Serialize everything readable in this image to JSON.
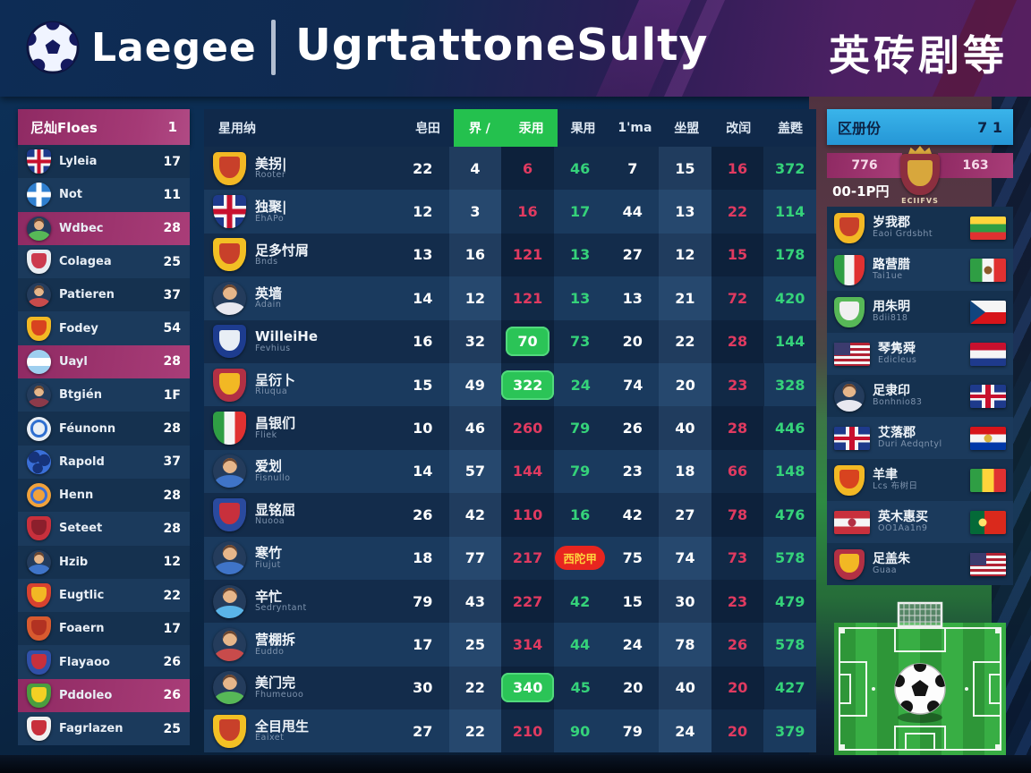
{
  "header": {
    "brand": "Laegee",
    "title": "UgrtattoneSulty",
    "right_title": "英砖剧等"
  },
  "left_sidebar": {
    "header": {
      "label": "尼灿Floes",
      "value": "1"
    },
    "rows": [
      {
        "icon": "uk-shield-icon",
        "name": "Lyleia",
        "value": "17",
        "highlight": false
      },
      {
        "icon": "cross-circle-icon",
        "name": "Not",
        "value": "11",
        "highlight": false
      },
      {
        "icon": "avatar-green-icon",
        "name": "Wdbec",
        "value": "28",
        "highlight": true
      },
      {
        "icon": "white-red-shield-icon",
        "name": "Colagea",
        "value": "25",
        "highlight": false
      },
      {
        "icon": "avatar-red-icon",
        "name": "Patieren",
        "value": "37",
        "highlight": false
      },
      {
        "icon": "gold-crest-icon",
        "name": "Fodey",
        "value": "54",
        "highlight": false
      },
      {
        "icon": "argentina-circle-icon",
        "name": "Uayl",
        "value": "28",
        "highlight": true
      },
      {
        "icon": "avatar-maroon-icon",
        "name": "Btgién",
        "value": "1F",
        "highlight": false
      },
      {
        "icon": "ring-circle-icon",
        "name": "Féunonn",
        "value": "28",
        "highlight": false
      },
      {
        "icon": "camo-ball-icon",
        "name": "Rapold",
        "value": "37",
        "highlight": false
      },
      {
        "icon": "orange-circle-icon",
        "name": "Henn",
        "value": "28",
        "highlight": false
      },
      {
        "icon": "red-shield-icon",
        "name": "Seteet",
        "value": "28",
        "highlight": false
      },
      {
        "icon": "avatar-blue-icon",
        "name": "Hzib",
        "value": "12",
        "highlight": false
      },
      {
        "icon": "red-cross-crest-icon",
        "name": "Eugtlic",
        "value": "22",
        "highlight": false
      },
      {
        "icon": "orange-fox-crest-icon",
        "name": "Foaern",
        "value": "17",
        "highlight": false
      },
      {
        "icon": "blue-red-crest-icon",
        "name": "Flayaoo",
        "value": "26",
        "highlight": false
      },
      {
        "icon": "green-gold-crest-icon",
        "name": "Pddoleo",
        "value": "26",
        "highlight": true
      },
      {
        "icon": "white-cross-crest-icon",
        "name": "Fagrlazen",
        "value": "25",
        "highlight": false
      }
    ]
  },
  "main_table": {
    "columns": [
      {
        "label": "星用纳",
        "green": false
      },
      {
        "label": "皂田",
        "green": false
      },
      {
        "label": "界 /",
        "green": true
      },
      {
        "label": "汞用",
        "green": true
      },
      {
        "label": "果用",
        "green": false
      },
      {
        "label": "1'ma",
        "green": false
      },
      {
        "label": "坐盟",
        "green": false
      },
      {
        "label": "改闰",
        "green": false
      },
      {
        "label": "盖甦",
        "green": false
      }
    ],
    "rows": [
      {
        "icon": "spain-crest-icon",
        "name": "美拐|",
        "sub": "Rooter",
        "cells": [
          {
            "v": "22",
            "c": "w"
          },
          {
            "v": "4",
            "c": "w"
          },
          {
            "v": "6",
            "c": "r"
          },
          {
            "v": "46",
            "c": "g"
          },
          {
            "v": "7",
            "c": "w"
          },
          {
            "v": "15",
            "c": "w"
          },
          {
            "v": "16",
            "c": "r"
          },
          {
            "v": "372",
            "c": "g"
          }
        ]
      },
      {
        "icon": "uk-shield-icon",
        "name": "独聚|",
        "sub": "EhAPo",
        "cells": [
          {
            "v": "12",
            "c": "w"
          },
          {
            "v": "3",
            "c": "w"
          },
          {
            "v": "16",
            "c": "r"
          },
          {
            "v": "17",
            "c": "g"
          },
          {
            "v": "44",
            "c": "w"
          },
          {
            "v": "13",
            "c": "w"
          },
          {
            "v": "22",
            "c": "r"
          },
          {
            "v": "114",
            "c": "g"
          }
        ]
      },
      {
        "icon": "gold-red-crest-icon",
        "name": "足多忖屑",
        "sub": "Bnds",
        "cells": [
          {
            "v": "13",
            "c": "w"
          },
          {
            "v": "16",
            "c": "w"
          },
          {
            "v": "121",
            "c": "r"
          },
          {
            "v": "13",
            "c": "g"
          },
          {
            "v": "27",
            "c": "w"
          },
          {
            "v": "12",
            "c": "w"
          },
          {
            "v": "15",
            "c": "r"
          },
          {
            "v": "178",
            "c": "g"
          }
        ]
      },
      {
        "icon": "avatar-white-icon",
        "name": "英墙",
        "sub": "Adain",
        "cells": [
          {
            "v": "14",
            "c": "w"
          },
          {
            "v": "12",
            "c": "w"
          },
          {
            "v": "121",
            "c": "r"
          },
          {
            "v": "13",
            "c": "g"
          },
          {
            "v": "13",
            "c": "w"
          },
          {
            "v": "21",
            "c": "w"
          },
          {
            "v": "72",
            "c": "r"
          },
          {
            "v": "420",
            "c": "g"
          }
        ]
      },
      {
        "icon": "blue-flag-crest-icon",
        "name": "WilleiHe",
        "sub": "Fevhius",
        "cells": [
          {
            "v": "16",
            "c": "w"
          },
          {
            "v": "32",
            "c": "w"
          },
          {
            "v": "70",
            "c": "G"
          },
          {
            "v": "73",
            "c": "g"
          },
          {
            "v": "20",
            "c": "w"
          },
          {
            "v": "22",
            "c": "w"
          },
          {
            "v": "28",
            "c": "r"
          },
          {
            "v": "144",
            "c": "g"
          }
        ]
      },
      {
        "icon": "crimson-gold-crest-icon",
        "name": "呈衍卜",
        "sub": "Riuqua",
        "cells": [
          {
            "v": "15",
            "c": "w"
          },
          {
            "v": "49",
            "c": "w"
          },
          {
            "v": "322",
            "c": "G"
          },
          {
            "v": "24",
            "c": "g"
          },
          {
            "v": "74",
            "c": "w"
          },
          {
            "v": "20",
            "c": "w"
          },
          {
            "v": "23",
            "c": "r"
          },
          {
            "v": "328",
            "c": "g"
          }
        ]
      },
      {
        "icon": "italy-shield-icon",
        "name": "昌银们",
        "sub": "Fliek",
        "cells": [
          {
            "v": "10",
            "c": "w"
          },
          {
            "v": "46",
            "c": "w"
          },
          {
            "v": "260",
            "c": "r"
          },
          {
            "v": "79",
            "c": "g"
          },
          {
            "v": "26",
            "c": "w"
          },
          {
            "v": "40",
            "c": "w"
          },
          {
            "v": "28",
            "c": "r"
          },
          {
            "v": "446",
            "c": "g"
          }
        ]
      },
      {
        "icon": "avatar-blue-icon",
        "name": "爱划",
        "sub": "Fisnullo",
        "cells": [
          {
            "v": "14",
            "c": "w"
          },
          {
            "v": "57",
            "c": "w"
          },
          {
            "v": "144",
            "c": "r"
          },
          {
            "v": "79",
            "c": "g"
          },
          {
            "v": "23",
            "c": "w"
          },
          {
            "v": "18",
            "c": "w"
          },
          {
            "v": "66",
            "c": "r"
          },
          {
            "v": "148",
            "c": "g"
          }
        ]
      },
      {
        "icon": "navy-red-crest-icon",
        "name": "显铭屈",
        "sub": "Nuooa",
        "cells": [
          {
            "v": "26",
            "c": "w"
          },
          {
            "v": "42",
            "c": "w"
          },
          {
            "v": "110",
            "c": "r"
          },
          {
            "v": "16",
            "c": "g"
          },
          {
            "v": "42",
            "c": "w"
          },
          {
            "v": "27",
            "c": "w"
          },
          {
            "v": "78",
            "c": "r"
          },
          {
            "v": "476",
            "c": "g"
          }
        ]
      },
      {
        "icon": "avatar-blue-icon",
        "name": "寒竹",
        "sub": "Fiujut",
        "cells": [
          {
            "v": "18",
            "c": "w"
          },
          {
            "v": "77",
            "c": "w"
          },
          {
            "v": "217",
            "c": "r"
          },
          {
            "v": "西陀甲",
            "c": "R"
          },
          {
            "v": "75",
            "c": "w"
          },
          {
            "v": "74",
            "c": "w"
          },
          {
            "v": "73",
            "c": "r"
          },
          {
            "v": "578",
            "c": "g"
          }
        ]
      },
      {
        "icon": "avatar-lightblue-icon",
        "name": "辛忙",
        "sub": "Sedryntant",
        "cells": [
          {
            "v": "79",
            "c": "w"
          },
          {
            "v": "43",
            "c": "w"
          },
          {
            "v": "227",
            "c": "r"
          },
          {
            "v": "42",
            "c": "g"
          },
          {
            "v": "15",
            "c": "w"
          },
          {
            "v": "30",
            "c": "w"
          },
          {
            "v": "23",
            "c": "r"
          },
          {
            "v": "479",
            "c": "g"
          }
        ]
      },
      {
        "icon": "avatar-red-icon",
        "name": "营棚拆",
        "sub": "Euddo",
        "cells": [
          {
            "v": "17",
            "c": "w"
          },
          {
            "v": "25",
            "c": "w"
          },
          {
            "v": "314",
            "c": "r"
          },
          {
            "v": "44",
            "c": "g"
          },
          {
            "v": "24",
            "c": "w"
          },
          {
            "v": "78",
            "c": "w"
          },
          {
            "v": "26",
            "c": "r"
          },
          {
            "v": "578",
            "c": "g"
          }
        ]
      },
      {
        "icon": "avatar-green-icon",
        "name": "美门完",
        "sub": "Fhumeuoo",
        "cells": [
          {
            "v": "30",
            "c": "w"
          },
          {
            "v": "22",
            "c": "w"
          },
          {
            "v": "340",
            "c": "G"
          },
          {
            "v": "45",
            "c": "g"
          },
          {
            "v": "20",
            "c": "w"
          },
          {
            "v": "40",
            "c": "w"
          },
          {
            "v": "20",
            "c": "r"
          },
          {
            "v": "427",
            "c": "g"
          }
        ]
      },
      {
        "icon": "gold-red-crest-icon",
        "name": "全目甩生",
        "sub": "Eaixet",
        "cells": [
          {
            "v": "27",
            "c": "w"
          },
          {
            "v": "22",
            "c": "w"
          },
          {
            "v": "210",
            "c": "r"
          },
          {
            "v": "90",
            "c": "g"
          },
          {
            "v": "79",
            "c": "w"
          },
          {
            "v": "24",
            "c": "w"
          },
          {
            "v": "20",
            "c": "r"
          },
          {
            "v": "379",
            "c": "g"
          }
        ]
      }
    ]
  },
  "right_sidebar": {
    "header": {
      "label": "区册份",
      "value": "7 1"
    },
    "score_left": "776",
    "score_right": "163",
    "sub_label": "00-1P円",
    "crest_icon": "club-crest-icon",
    "crest_caption": "ECIIFVS",
    "rows": [
      {
        "icon": "spain-crest-icon",
        "name": "岁我郡",
        "sub": "Eaoi Grdsbht",
        "flag": "bolivia-flag-icon"
      },
      {
        "icon": "italy-shield-icon",
        "name": "路营腊",
        "sub": "Tai1ue",
        "flag": "mexico-flag-icon"
      },
      {
        "icon": "green-white-crest-icon",
        "name": "用朱明",
        "sub": "Bdii818",
        "flag": "czech-flag-icon"
      },
      {
        "icon": "us-flag-icon",
        "name": "琴隽舜",
        "sub": "Edicleus",
        "flag": "netherlands-flag-icon"
      },
      {
        "icon": "avatar-white-icon",
        "name": "足隶印",
        "sub": "Bonhnio83",
        "flag": "uk-flag-icon"
      },
      {
        "icon": "uk-flag-icon",
        "name": "艾落郡",
        "sub": "Duri Aedqntyl",
        "flag": "paraguay-flag-icon"
      },
      {
        "icon": "gold-crest-icon",
        "name": "羊聿",
        "sub": "Lcs 布树日",
        "flag": "mali-flag-icon"
      },
      {
        "icon": "austria-flag-icon",
        "name": "英木惠买",
        "sub": "OO1Aa1n9",
        "flag": "portugal-flag-icon"
      },
      {
        "icon": "crimson-gold-crest-icon",
        "name": "足盖朱",
        "sub": "Guaa",
        "flag": "us-flag-icon"
      }
    ]
  },
  "colors": {
    "accent_green": "#24c14e",
    "accent_magenta": "#a03070",
    "stat_red": "#e03a60",
    "stat_green": "#35d27a",
    "badge_red": "#e8251f",
    "header_blue": "#2fa6e0"
  },
  "icons": {
    "uk-shield-icon": {
      "type": "uk",
      "shape": "shield"
    },
    "uk-flag-icon": {
      "type": "uk",
      "shape": "rect"
    },
    "cross-circle-icon": {
      "type": "circlecross",
      "c": [
        "#2f7fd0",
        "#ffffff"
      ]
    },
    "avatar-green-icon": {
      "type": "avatar",
      "c": "#57b857"
    },
    "avatar-red-icon": {
      "type": "avatar",
      "c": "#c84b4b"
    },
    "avatar-maroon-icon": {
      "type": "avatar",
      "c": "#8c3a4a"
    },
    "avatar-blue-icon": {
      "type": "avatar",
      "c": "#3f74c8"
    },
    "avatar-lightblue-icon": {
      "type": "avatar",
      "c": "#5ab4e8"
    },
    "avatar-white-icon": {
      "type": "avatar",
      "c": "#e8e8f0"
    },
    "white-red-shield-icon": {
      "type": "shield",
      "c": [
        "#e8edf2",
        "#cc3a4e"
      ]
    },
    "gold-crest-icon": {
      "type": "shield",
      "c": [
        "#f2b824",
        "#d8431f"
      ]
    },
    "argentina-circle-icon": {
      "type": "circle3h",
      "c": [
        "#9ecfef",
        "#ffffff",
        "#9ecfef"
      ]
    },
    "ring-circle-icon": {
      "type": "circlering",
      "c": [
        "#e8eef5",
        "#2f6fd0"
      ]
    },
    "camo-ball-icon": {
      "type": "circlespots",
      "c": [
        "#3a6fd8",
        "#16337a"
      ]
    },
    "orange-circle-icon": {
      "type": "circlering",
      "c": [
        "#f0a23c",
        "#3a6fd8"
      ]
    },
    "red-shield-icon": {
      "type": "shield",
      "c": [
        "#c8303c",
        "#8c1f2c"
      ]
    },
    "red-cross-crest-icon": {
      "type": "shield",
      "c": [
        "#d8422f",
        "#f2b824"
      ]
    },
    "orange-fox-crest-icon": {
      "type": "shield",
      "c": [
        "#d85a2f",
        "#b23222"
      ]
    },
    "blue-red-crest-icon": {
      "type": "shield",
      "c": [
        "#3050a8",
        "#c8303c"
      ]
    },
    "green-gold-crest-icon": {
      "type": "shield",
      "c": [
        "#4a9e3f",
        "#f2d024"
      ]
    },
    "white-cross-crest-icon": {
      "type": "shield",
      "c": [
        "#f0f0f0",
        "#c8303c"
      ]
    },
    "spain-crest-icon": {
      "type": "shield",
      "c": [
        "#f2b824",
        "#c8402a"
      ]
    },
    "gold-red-crest-icon": {
      "type": "shield",
      "c": [
        "#f2c024",
        "#c8402a"
      ]
    },
    "blue-flag-crest-icon": {
      "type": "shield",
      "c": [
        "#1d3c8f",
        "#e8eef5"
      ]
    },
    "crimson-gold-crest-icon": {
      "type": "shield",
      "c": [
        "#b23044",
        "#f2b824"
      ]
    },
    "italy-shield-icon": {
      "type": "flag3v",
      "c": [
        "#2f9e44",
        "#f5f5f5",
        "#e03131"
      ],
      "shield": true
    },
    "navy-red-crest-icon": {
      "type": "shield",
      "c": [
        "#2a4a9e",
        "#c8303c"
      ]
    },
    "green-white-crest-icon": {
      "type": "shield",
      "c": [
        "#57b857",
        "#f0f0f0"
      ]
    },
    "club-crest-icon": {
      "type": "shield",
      "c": [
        "#8c2f3f",
        "#d8a73c"
      ]
    },
    "us-flag-icon": {
      "type": "us"
    },
    "austria-flag-icon": {
      "type": "flag3h",
      "c": [
        "#c8303c",
        "#f5f5f5",
        "#c8303c"
      ],
      "dot": "#b23044"
    },
    "bolivia-flag-icon": {
      "type": "flag3h",
      "c": [
        "#ffd43b",
        "#2f9e44",
        "#e03131"
      ]
    },
    "mexico-flag-icon": {
      "type": "flag3v",
      "c": [
        "#2f9e44",
        "#f5f5f5",
        "#e03131"
      ],
      "dot": "#8c5a2a"
    },
    "czech-flag-icon": {
      "type": "cz"
    },
    "netherlands-flag-icon": {
      "type": "flag3h",
      "c": [
        "#c8102e",
        "#f5f5f5",
        "#1e3a8c"
      ]
    },
    "paraguay-flag-icon": {
      "type": "flag3h",
      "c": [
        "#d7141a",
        "#f5f5f5",
        "#0038a8"
      ],
      "dot": "#d8b23c"
    },
    "mali-flag-icon": {
      "type": "flag3v",
      "c": [
        "#2f9e44",
        "#ffd43b",
        "#e03131"
      ]
    },
    "portugal-flag-icon": {
      "type": "pt"
    }
  }
}
